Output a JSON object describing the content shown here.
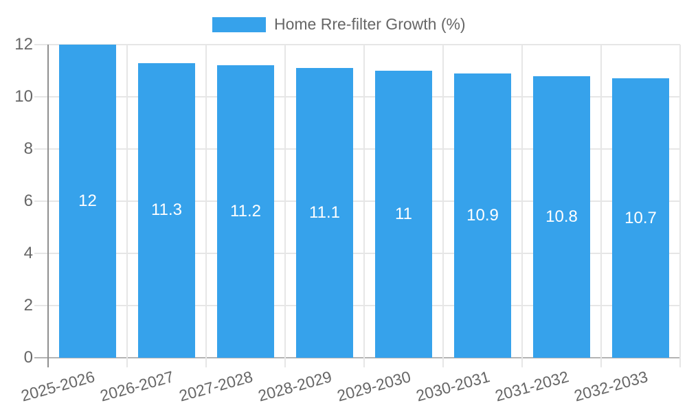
{
  "legend": {
    "label": "Home Rre-filter Growth (%)"
  },
  "chart_data": {
    "type": "bar",
    "title": "Home Rre-filter Growth (%)",
    "series_name": "Home Rre-filter Growth (%)",
    "categories": [
      "2025-2026",
      "2026-2027",
      "2027-2028",
      "2028-2029",
      "2029-2030",
      "2030-2031",
      "2031-2032",
      "2032-2033"
    ],
    "values": [
      12,
      11.3,
      11.2,
      11.1,
      11,
      10.9,
      10.8,
      10.7
    ],
    "value_labels": [
      "12",
      "11.3",
      "11.2",
      "11.1",
      "11",
      "10.9",
      "10.8",
      "10.7"
    ],
    "y_ticks": [
      0,
      2,
      4,
      6,
      8,
      10,
      12
    ],
    "ylim": [
      0,
      12
    ],
    "xlabel": "",
    "ylabel": "",
    "grid": true,
    "legend_position": "top",
    "x_label_rotation_deg": -15.5,
    "colors": {
      "bar": "#36A2EB",
      "bar_label": "#FFFFFF",
      "grid": "#E6E6E6",
      "axis_line_y": "#8F8F8F",
      "baseline": "#B3B3B3",
      "tick_label": "#666666",
      "legend_label": "#666666",
      "background": "#FFFFFF"
    }
  }
}
